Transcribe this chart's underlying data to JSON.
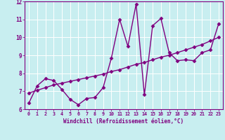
{
  "title": "",
  "xlabel": "Windchill (Refroidissement éolien,°C)",
  "ylabel": "",
  "xlim": [
    -0.5,
    23.5
  ],
  "ylim": [
    6,
    12
  ],
  "yticks": [
    6,
    7,
    8,
    9,
    10,
    11,
    12
  ],
  "xticks": [
    0,
    1,
    2,
    3,
    4,
    5,
    6,
    7,
    8,
    9,
    10,
    11,
    12,
    13,
    14,
    15,
    16,
    17,
    18,
    19,
    20,
    21,
    22,
    23
  ],
  "bg_color": "#c8eef0",
  "line_color": "#800080",
  "grid_color": "#ffffff",
  "jagged_x": [
    0,
    1,
    2,
    3,
    4,
    5,
    6,
    7,
    8,
    9,
    10,
    11,
    12,
    13,
    14,
    15,
    16,
    17,
    18,
    19,
    20,
    21,
    22,
    23
  ],
  "jagged_y": [
    6.35,
    7.3,
    7.7,
    7.6,
    7.1,
    6.55,
    6.25,
    6.6,
    6.65,
    7.2,
    8.85,
    11.0,
    9.5,
    11.85,
    6.8,
    10.65,
    11.05,
    9.15,
    8.7,
    8.75,
    8.7,
    9.15,
    9.3,
    10.75
  ],
  "smooth_x": [
    0,
    1,
    2,
    3,
    4,
    5,
    6,
    7,
    8,
    9,
    10,
    11,
    12,
    13,
    14,
    15,
    16,
    17,
    18,
    19,
    20,
    21,
    22,
    23
  ],
  "smooth_y": [
    6.9,
    7.05,
    7.2,
    7.35,
    7.45,
    7.55,
    7.65,
    7.75,
    7.85,
    7.95,
    8.1,
    8.2,
    8.35,
    8.5,
    8.6,
    8.75,
    8.9,
    9.0,
    9.15,
    9.3,
    9.45,
    9.6,
    9.8,
    10.0
  ],
  "marker": "D",
  "markersize": 2.5,
  "linewidth": 1.0
}
